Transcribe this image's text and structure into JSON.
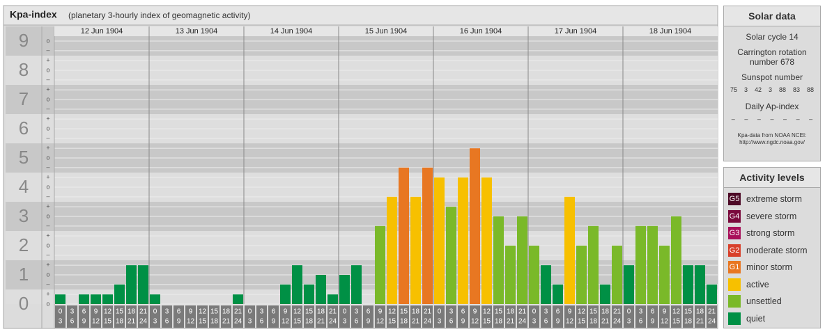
{
  "chart_data": {
    "type": "bar",
    "title": "Kpa-index",
    "subtitle": "(planetary 3-hourly index of geomagnetic activity)",
    "ylim": [
      0,
      9.5
    ],
    "yticks": [
      0,
      1,
      2,
      3,
      4,
      5,
      6,
      7,
      8,
      9
    ],
    "yminorticks": [
      {
        "value": 0,
        "label": "o"
      },
      {
        "value": 0.33,
        "label": "+"
      },
      {
        "value": 0.67,
        "label": "–"
      },
      {
        "value": 1,
        "label": "o"
      },
      {
        "value": 1.33,
        "label": "+"
      },
      {
        "value": 1.67,
        "label": "–"
      },
      {
        "value": 2,
        "label": "o"
      },
      {
        "value": 2.33,
        "label": "+"
      },
      {
        "value": 2.67,
        "label": "–"
      },
      {
        "value": 3,
        "label": "o"
      },
      {
        "value": 3.33,
        "label": "+"
      },
      {
        "value": 3.67,
        "label": "–"
      },
      {
        "value": 4,
        "label": "o"
      },
      {
        "value": 4.33,
        "label": "+"
      },
      {
        "value": 4.67,
        "label": "–"
      },
      {
        "value": 5,
        "label": "o"
      },
      {
        "value": 5.33,
        "label": "+"
      },
      {
        "value": 5.67,
        "label": "–"
      },
      {
        "value": 6,
        "label": "o"
      },
      {
        "value": 6.33,
        "label": "+"
      },
      {
        "value": 6.67,
        "label": "–"
      },
      {
        "value": 7,
        "label": "o"
      },
      {
        "value": 7.33,
        "label": "+"
      },
      {
        "value": 7.67,
        "label": "–"
      },
      {
        "value": 8,
        "label": "o"
      },
      {
        "value": 8.33,
        "label": "+"
      },
      {
        "value": 8.67,
        "label": "–"
      },
      {
        "value": 9,
        "label": "o"
      }
    ],
    "slots": [
      [
        "0",
        "3"
      ],
      [
        "3",
        "6"
      ],
      [
        "6",
        "9"
      ],
      [
        "9",
        "12"
      ],
      [
        "12",
        "15"
      ],
      [
        "15",
        "18"
      ],
      [
        "18",
        "21"
      ],
      [
        "21",
        "24"
      ]
    ],
    "days": [
      {
        "date": "12 Jun 1904",
        "values": [
          0.33,
          0,
          0.33,
          0.33,
          0.33,
          0.67,
          1.33,
          1.33
        ],
        "colors": [
          "#009045",
          "#009045",
          "#009045",
          "#009045",
          "#009045",
          "#009045",
          "#009045",
          "#009045"
        ]
      },
      {
        "date": "13 Jun 1904",
        "values": [
          0.33,
          0,
          0,
          0,
          0,
          0,
          0,
          0.33
        ],
        "colors": [
          "#009045",
          "#009045",
          "#009045",
          "#009045",
          "#009045",
          "#009045",
          "#009045",
          "#009045"
        ]
      },
      {
        "date": "14 Jun 1904",
        "values": [
          0,
          0,
          0,
          0.67,
          1.33,
          0.67,
          1,
          0.33
        ],
        "colors": [
          "#009045",
          "#009045",
          "#009045",
          "#009045",
          "#009045",
          "#009045",
          "#009045",
          "#009045"
        ]
      },
      {
        "date": "15 Jun 1904",
        "values": [
          1,
          1.33,
          0,
          2.67,
          3.67,
          4.67,
          3.67,
          4.67
        ],
        "colors": [
          "#009045",
          "#009045",
          "#009045",
          "#7ab929",
          "#f7c000",
          "#e87722",
          "#f7c000",
          "#e87722"
        ]
      },
      {
        "date": "16 Jun 1904",
        "values": [
          4.33,
          3.33,
          4.33,
          5.33,
          4.33,
          3,
          2,
          3
        ],
        "colors": [
          "#f7c000",
          "#7ab929",
          "#f7c000",
          "#e87722",
          "#f7c000",
          "#7ab929",
          "#7ab929",
          "#7ab929"
        ]
      },
      {
        "date": "17 Jun 1904",
        "values": [
          2,
          1.33,
          0.67,
          3.67,
          2,
          2.67,
          0.67,
          2
        ],
        "colors": [
          "#7ab929",
          "#009045",
          "#009045",
          "#f7c000",
          "#7ab929",
          "#7ab929",
          "#009045",
          "#7ab929"
        ]
      },
      {
        "date": "18 Jun 1904",
        "values": [
          1.33,
          2.67,
          2.67,
          2,
          3,
          1.33,
          1.33,
          0.67
        ],
        "colors": [
          "#009045",
          "#7ab929",
          "#7ab929",
          "#7ab929",
          "#7ab929",
          "#009045",
          "#009045",
          "#009045"
        ]
      }
    ]
  },
  "solar_data": {
    "title": "Solar data",
    "cycle": "Solar cycle 14",
    "carrington": "Carrington rotation number 678",
    "sunspot_label": "Sunspot number",
    "sunspots": [
      "75",
      "3",
      "42",
      "3",
      "88",
      "83",
      "88"
    ],
    "ap_label": "Daily Ap-index",
    "ap": [
      "–",
      "–",
      "–",
      "–",
      "–",
      "–",
      "–"
    ],
    "source": "Kpa-data from NOAA NCEI:",
    "source_url": "http://www.ngdc.noaa.gov/"
  },
  "activity_levels": {
    "title": "Activity levels",
    "levels": [
      {
        "code": "G5",
        "name": "extreme storm",
        "color": "#4d0a26"
      },
      {
        "code": "G4",
        "name": "severe storm",
        "color": "#7a0a3c"
      },
      {
        "code": "G3",
        "name": "strong storm",
        "color": "#a8105a"
      },
      {
        "code": "G2",
        "name": "moderate storm",
        "color": "#d8402a"
      },
      {
        "code": "G1",
        "name": "minor storm",
        "color": "#e87722"
      },
      {
        "name": "active",
        "color": "#f7c000"
      },
      {
        "name": "unsettled",
        "color": "#7ab929"
      },
      {
        "name": "quiet",
        "color": "#009045"
      }
    ]
  }
}
